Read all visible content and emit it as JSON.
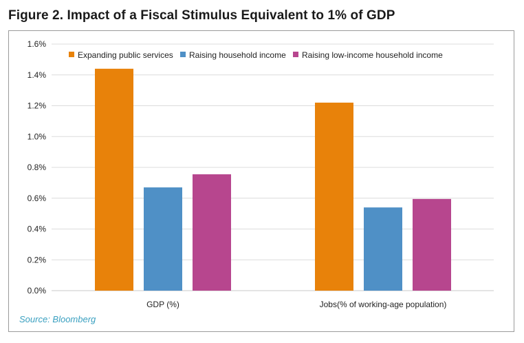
{
  "figure": {
    "title": "Figure 2. Impact of a Fiscal Stimulus Equivalent to 1% of GDP",
    "source": "Source: Bloomberg"
  },
  "chart_data": {
    "type": "bar",
    "title": "Figure 2. Impact of a Fiscal Stimulus Equivalent to 1% of GDP",
    "xlabel": "",
    "ylabel": "",
    "ylim": [
      0,
      1.6
    ],
    "grid": true,
    "legend": "top",
    "categories": [
      "GDP (%)",
      "Jobs(% of working-age population)"
    ],
    "series": [
      {
        "name": "Expanding public services",
        "color": "#E8820A",
        "values": [
          1.44,
          1.22
        ]
      },
      {
        "name": "Raising household income",
        "color": "#4F90C6",
        "values": [
          0.67,
          0.54
        ]
      },
      {
        "name": "Raising low-income household income",
        "color": "#B7468E",
        "values": [
          0.755,
          0.595
        ]
      }
    ],
    "y_ticks": [
      0,
      0.2,
      0.4,
      0.6,
      0.8,
      1.0,
      1.2,
      1.4,
      1.6
    ],
    "y_tick_labels": [
      "0.0%",
      "0.2%",
      "0.4%",
      "0.6%",
      "0.8%",
      "1.0%",
      "1.2%",
      "1.4%",
      "1.6%"
    ]
  }
}
